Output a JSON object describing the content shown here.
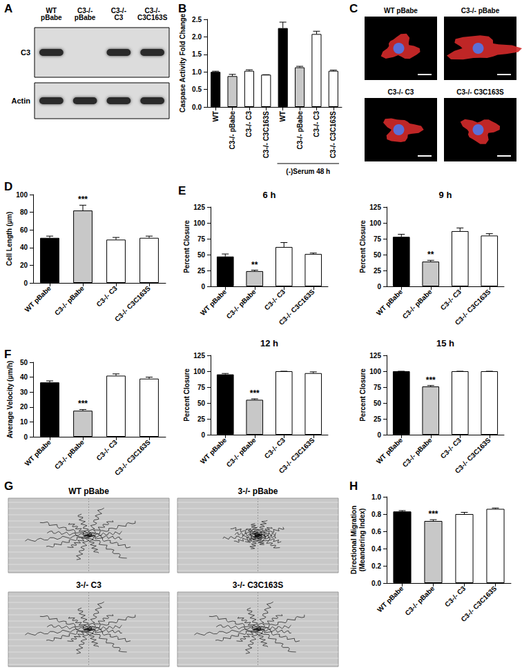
{
  "blot": {
    "panel": "A",
    "lanes": [
      "WT pBabe",
      "C3-/- pBabe",
      "C3-/- C3",
      "C3-/- C3C163S"
    ],
    "rows": [
      {
        "label": "C3",
        "bands": [
          true,
          false,
          true,
          true
        ]
      },
      {
        "label": "Actin",
        "bands": [
          true,
          true,
          true,
          true
        ]
      }
    ]
  },
  "images": {
    "panel": "C",
    "labels": [
      "WT pBabe",
      "C3-/- pBabe",
      "C3-/- C3",
      "C3-/- C3C163S"
    ]
  },
  "tracks": {
    "panel": "G",
    "labels": [
      "WT pBabe",
      "3-/- pBabe",
      "3-/- C3",
      "3-/- C3C163S"
    ]
  },
  "chart_data": [
    {
      "panel": "B",
      "type": "bar",
      "y_label": "Caspase Activity Fold Change",
      "categories": [
        "WT",
        "C3-/- pBabe",
        "C3-/- C3",
        "C3-/- C3C163S",
        "WT",
        "C3-/- pBabe",
        "C3-/- C3",
        "C3-/- C3C163S"
      ],
      "values": [
        1.0,
        0.88,
        1.03,
        0.92,
        2.25,
        1.13,
        2.08,
        1.03
      ],
      "errors": [
        0.02,
        0.05,
        0.03,
        0.0,
        0.17,
        0.03,
        0.08,
        0.02
      ],
      "colors": [
        "#000000",
        "#c8c8c8",
        "#ffffff",
        "#ffffff",
        "#000000",
        "#c8c8c8",
        "#ffffff",
        "#ffffff"
      ],
      "ylim": [
        0,
        2.5
      ],
      "yticks": [
        {
          "value": 0,
          "label": "0.0"
        },
        {
          "value": 0.5,
          "label": "0.5"
        },
        {
          "value": 1,
          "label": "1.0"
        },
        {
          "value": 1.5,
          "label": "1.5"
        },
        {
          "value": 2,
          "label": "2.0"
        },
        {
          "value": 2.5,
          "label": "2.5"
        }
      ],
      "grid": false,
      "groups": [
        {
          "label": "(-)Serum 48 h",
          "from": 4,
          "to": 7
        }
      ]
    },
    {
      "panel": "D",
      "type": "bar",
      "y_label": "Cell Length (µm)",
      "categories": [
        "WT pBabe",
        "C3-/- pBabe",
        "C3-/- C3",
        "C3-/- C3C163S"
      ],
      "values": [
        51,
        82,
        49,
        51
      ],
      "errors": [
        2,
        6,
        2.5,
        2
      ],
      "colors": [
        "#000000",
        "#c8c8c8",
        "#ffffff",
        "#ffffff"
      ],
      "ylim": [
        0,
        100
      ],
      "yticks": [
        0,
        20,
        40,
        60,
        80,
        100
      ],
      "grid": false,
      "annotations": [
        {
          "category": "C3-/- pBabe",
          "text": "***"
        }
      ]
    },
    {
      "panel": "E",
      "type": "bar",
      "title": "6 h",
      "y_label": "Percent Closure",
      "categories": [
        "WT pBabe",
        "C3-/- pBabe",
        "C3-/- C3",
        "C3-/- C3C163S"
      ],
      "values": [
        47,
        24,
        62,
        51
      ],
      "errors": [
        4,
        1.5,
        7,
        1.5
      ],
      "colors": [
        "#000000",
        "#c8c8c8",
        "#ffffff",
        "#ffffff"
      ],
      "ylim": [
        0,
        125
      ],
      "yticks": [
        0,
        25,
        50,
        75,
        100,
        125
      ],
      "grid": false,
      "annotations": [
        {
          "category": "C3-/- pBabe",
          "text": "**"
        }
      ]
    },
    {
      "type": "bar",
      "title": "9 h",
      "y_label": "Percent Closure",
      "categories": [
        "WT pBabe",
        "C3-/- pBabe",
        "C3-/- C3",
        "C3-/- C3C163S"
      ],
      "values": [
        78,
        39,
        87,
        80
      ],
      "errors": [
        4,
        2,
        5,
        3
      ],
      "colors": [
        "#000000",
        "#c8c8c8",
        "#ffffff",
        "#ffffff"
      ],
      "ylim": [
        0,
        125
      ],
      "yticks": [
        0,
        25,
        50,
        75,
        100,
        125
      ],
      "grid": false,
      "annotations": [
        {
          "category": "C3-/- pBabe",
          "text": "**"
        }
      ]
    },
    {
      "type": "bar",
      "title": "12 h",
      "y_label": "Percent Closure",
      "categories": [
        "WT pBabe",
        "C3-/- pBabe",
        "C3-/- C3",
        "C3-/- C3C163S"
      ],
      "values": [
        95,
        55,
        100,
        97
      ],
      "errors": [
        1.5,
        1.5,
        0,
        2
      ],
      "colors": [
        "#000000",
        "#c8c8c8",
        "#ffffff",
        "#ffffff"
      ],
      "ylim": [
        0,
        125
      ],
      "yticks": [
        0,
        25,
        50,
        75,
        100,
        125
      ],
      "grid": false,
      "annotations": [
        {
          "category": "C3-/- pBabe",
          "text": "***"
        }
      ]
    },
    {
      "type": "bar",
      "title": "15 h",
      "y_label": "Percent Closure",
      "categories": [
        "WT pBabe",
        "C3-/- pBabe",
        "C3-/- C3",
        "C3-/- C3C163S"
      ],
      "values": [
        100,
        76,
        100,
        100
      ],
      "errors": [
        0,
        1.5,
        0,
        0
      ],
      "colors": [
        "#000000",
        "#c8c8c8",
        "#ffffff",
        "#ffffff"
      ],
      "ylim": [
        0,
        125
      ],
      "yticks": [
        0,
        25,
        50,
        75,
        100,
        125
      ],
      "grid": false,
      "annotations": [
        {
          "category": "C3-/- pBabe",
          "text": "***"
        }
      ]
    },
    {
      "panel": "F",
      "type": "bar",
      "y_label": "Average Velocity (µm/h)",
      "categories": [
        "WT pBabe",
        "C3-/- pBabe",
        "C3-/- C3",
        "C3-/- C3C163S"
      ],
      "values": [
        36.5,
        17.5,
        41,
        39
      ],
      "errors": [
        1,
        0.8,
        1.2,
        1
      ],
      "colors": [
        "#000000",
        "#c8c8c8",
        "#ffffff",
        "#ffffff"
      ],
      "ylim": [
        0,
        50
      ],
      "yticks": [
        0,
        10,
        20,
        30,
        40,
        50
      ],
      "grid": false,
      "annotations": [
        {
          "category": "C3-/- pBabe",
          "text": "***"
        }
      ]
    },
    {
      "panel": "H",
      "type": "bar",
      "y_label": "Directional Migration (Meandering Index)",
      "categories": [
        "WT pBabe",
        "C3-/- pBabe",
        "C3-/- C3",
        "C3-/- C3C163S"
      ],
      "values": [
        0.83,
        0.72,
        0.8,
        0.86
      ],
      "errors": [
        0.01,
        0.015,
        0.02,
        0.01
      ],
      "colors": [
        "#000000",
        "#c8c8c8",
        "#ffffff",
        "#ffffff"
      ],
      "ylim": [
        0,
        1.0
      ],
      "yticks": [
        {
          "value": 0,
          "label": "0.0"
        },
        {
          "value": 0.2,
          "label": "0.2"
        },
        {
          "value": 0.4,
          "label": "0.4"
        },
        {
          "value": 0.6,
          "label": "0.6"
        },
        {
          "value": 0.8,
          "label": "0.8"
        },
        {
          "value": 1.0,
          "label": "1.0"
        }
      ],
      "grid": false,
      "annotations": [
        {
          "category": "C3-/- pBabe",
          "text": "***"
        }
      ]
    }
  ]
}
